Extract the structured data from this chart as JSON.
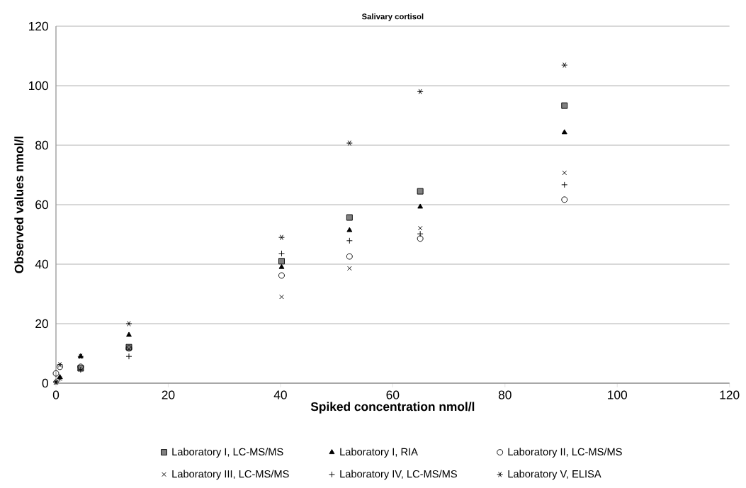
{
  "chart_data": {
    "type": "scatter",
    "title": "Salivary cortisol",
    "xlabel": "Spiked concentration nmol/l",
    "ylabel": "Observed values nmol/l",
    "xlim": [
      0,
      120
    ],
    "xticks": [
      0,
      20,
      40,
      60,
      80,
      100,
      120
    ],
    "ylim": [
      0,
      120
    ],
    "yticks": [
      0,
      20,
      40,
      60,
      80,
      100,
      120
    ],
    "grid": "y",
    "legend": "bottom",
    "x": [
      0,
      0.7,
      4.4,
      13,
      40.2,
      52.3,
      64.9,
      90.6
    ],
    "series": [
      {
        "name": "Laboratory I, LC-MS/MS",
        "color": "#808080",
        "marker": "square",
        "values": [
          null,
          null,
          5,
          12.1,
          41,
          55.7,
          64.5,
          93.3
        ]
      },
      {
        "name": "Laboratory I, RIA",
        "color": "#000000",
        "marker": "triangle",
        "values": [
          null,
          2,
          9,
          16.2,
          39,
          51.4,
          59.3,
          84.3
        ]
      },
      {
        "name": "Laboratory II, LC-MS/MS",
        "color": "#000000",
        "marker": "circle",
        "values": [
          3.3,
          5.5,
          5.5,
          11.7,
          36.2,
          42.6,
          48.6,
          61.7
        ]
      },
      {
        "name": "Laboratory III, LC-MS/MS",
        "color": "#000000",
        "marker": "cross",
        "values": [
          0.3,
          1.5,
          null,
          11.5,
          29,
          38.6,
          52.1,
          70.7
        ]
      },
      {
        "name": "Laboratory IV, LC-MS/MS",
        "color": "#000000",
        "marker": "plus",
        "values": [
          0.5,
          1.5,
          4.5,
          9,
          43.6,
          47.9,
          50.2,
          66.7
        ]
      },
      {
        "name": "Laboratory V, ELISA",
        "color": "#000000",
        "values": [
          0.3,
          6.2,
          9,
          20,
          49,
          80.7,
          98,
          106.9
        ]
      }
    ]
  }
}
